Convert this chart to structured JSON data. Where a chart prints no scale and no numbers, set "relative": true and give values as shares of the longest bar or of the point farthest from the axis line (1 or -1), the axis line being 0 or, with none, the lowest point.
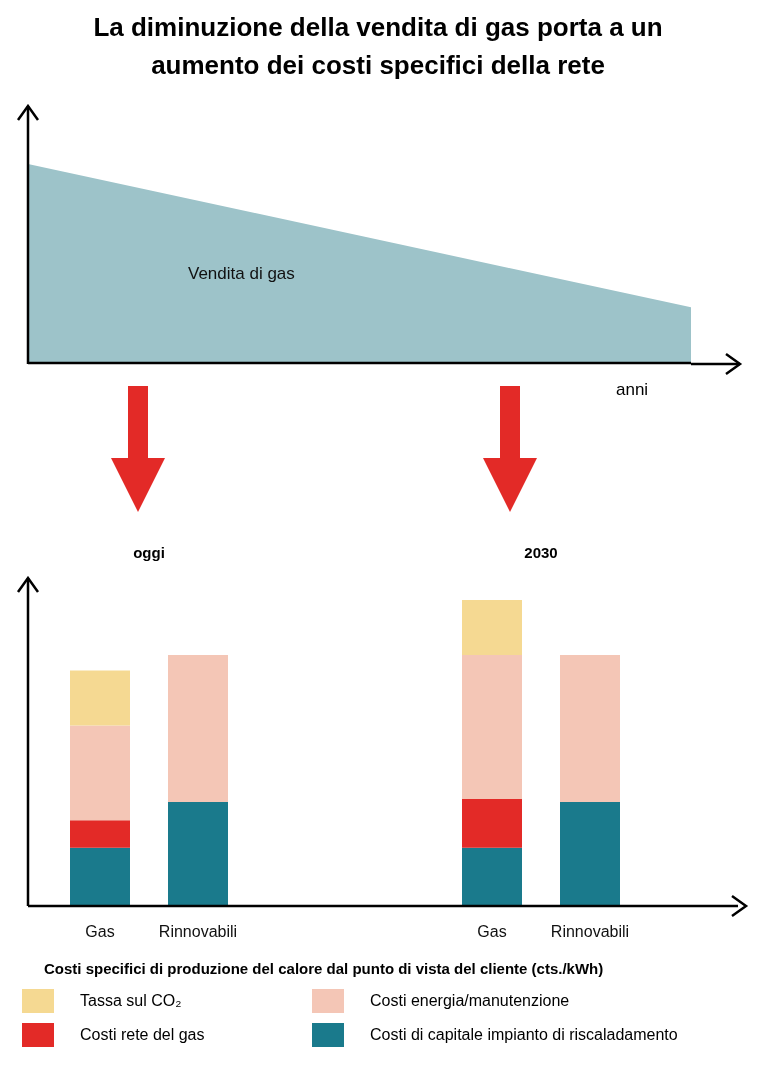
{
  "chart_data": [
    {
      "type": "area",
      "title": "La diminuzione della vendita di gas porta a un aumento dei costi specifici della rete",
      "xlabel": "anni",
      "relative": true,
      "categories": [
        null,
        null
      ],
      "series": [
        {
          "name": "Vendita di gas",
          "color": "#9dc3c9",
          "values": [
            1,
            0.28
          ]
        }
      ]
    },
    {
      "type": "bar",
      "stacked": true,
      "relative": true,
      "xlabel": "Costi specifici di produzione del calore dal punto di vista del cliente (cts./kWh)",
      "annotations": [
        "oggi",
        "2030"
      ],
      "legend": "bottom",
      "categories": [
        "Gas",
        "Rinnovabili",
        null,
        null,
        "Gas",
        "Rinnovabili"
      ],
      "series": [
        {
          "name": "Costi di capitale impianto di riscaladamento",
          "color": "#1a7a8c",
          "values": [
            0.19,
            0.34,
            null,
            null,
            0.19,
            0.34
          ]
        },
        {
          "name": "Costi rete del gas",
          "color": "#e32a27",
          "values": [
            0.09,
            null,
            null,
            null,
            0.16,
            null
          ]
        },
        {
          "name": "Costi energia/manutenzione",
          "color": "#f4c6b6",
          "values": [
            0.31,
            0.48,
            null,
            null,
            0.47,
            0.48
          ]
        },
        {
          "name": "Tassa sul CO₂",
          "color": "#f5d992",
          "values": [
            0.18,
            null,
            null,
            null,
            0.18,
            null
          ]
        }
      ]
    }
  ]
}
